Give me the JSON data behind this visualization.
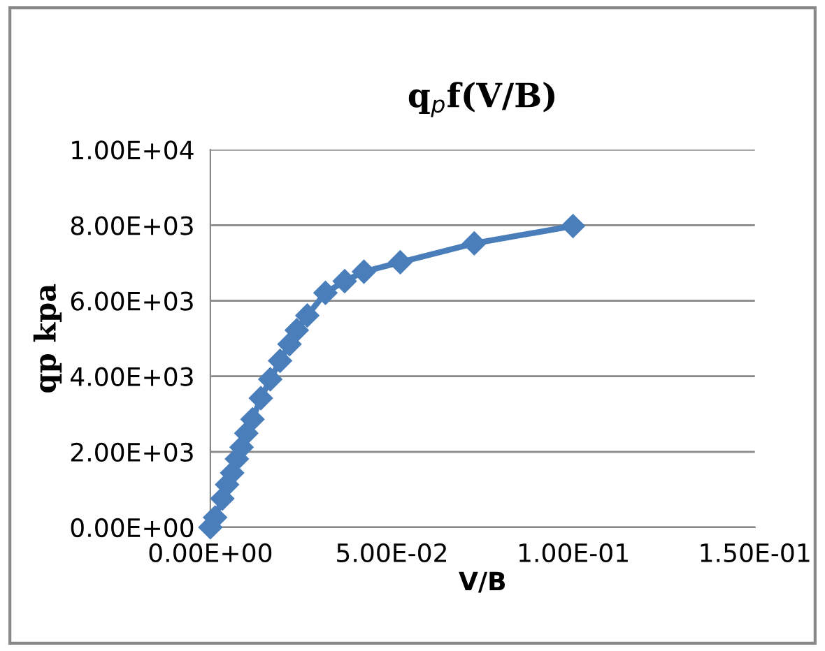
{
  "chart_data": {
    "type": "line",
    "title": "q$_{p}$f(V/B)",
    "xlabel": "V/B",
    "ylabel": "qp kpa",
    "x": [
      0,
      0.0013,
      0.0033,
      0.0046,
      0.006,
      0.0073,
      0.0086,
      0.0099,
      0.0116,
      0.0139,
      0.0165,
      0.0192,
      0.0218,
      0.0238,
      0.0267,
      0.0317,
      0.037,
      0.0423,
      0.0523,
      0.0727,
      0.0999
    ],
    "series": [
      {
        "color": "#4a7ebb",
        "values": [
          0,
          260,
          760,
          1130,
          1440,
          1810,
          2120,
          2490,
          2860,
          3420,
          3920,
          4410,
          4850,
          5220,
          5610,
          6210,
          6520,
          6770,
          7020,
          7520,
          7980
        ]
      }
    ],
    "xlim": [
      0,
      0.15
    ],
    "ylim": [
      0,
      10000
    ],
    "xticks": [
      {
        "value": 0,
        "label": "0.00E+00"
      },
      {
        "value": 0.05,
        "label": "5.00E-02"
      },
      {
        "value": 0.1,
        "label": "1.00E-01"
      },
      {
        "value": 0.15,
        "label": "1.50E-01"
      }
    ],
    "yticks": [
      {
        "value": 0,
        "label": "0.00E+00"
      },
      {
        "value": 2000,
        "label": "2.00E+03"
      },
      {
        "value": 4000,
        "label": "4.00E+03"
      },
      {
        "value": 6000,
        "label": "6.00E+03"
      },
      {
        "value": 8000,
        "label": "8.00E+03"
      },
      {
        "value": 10000,
        "label": "1.00E+04"
      }
    ],
    "grid": "y",
    "marker": "diamond",
    "line_style": "solid",
    "legend": false
  }
}
